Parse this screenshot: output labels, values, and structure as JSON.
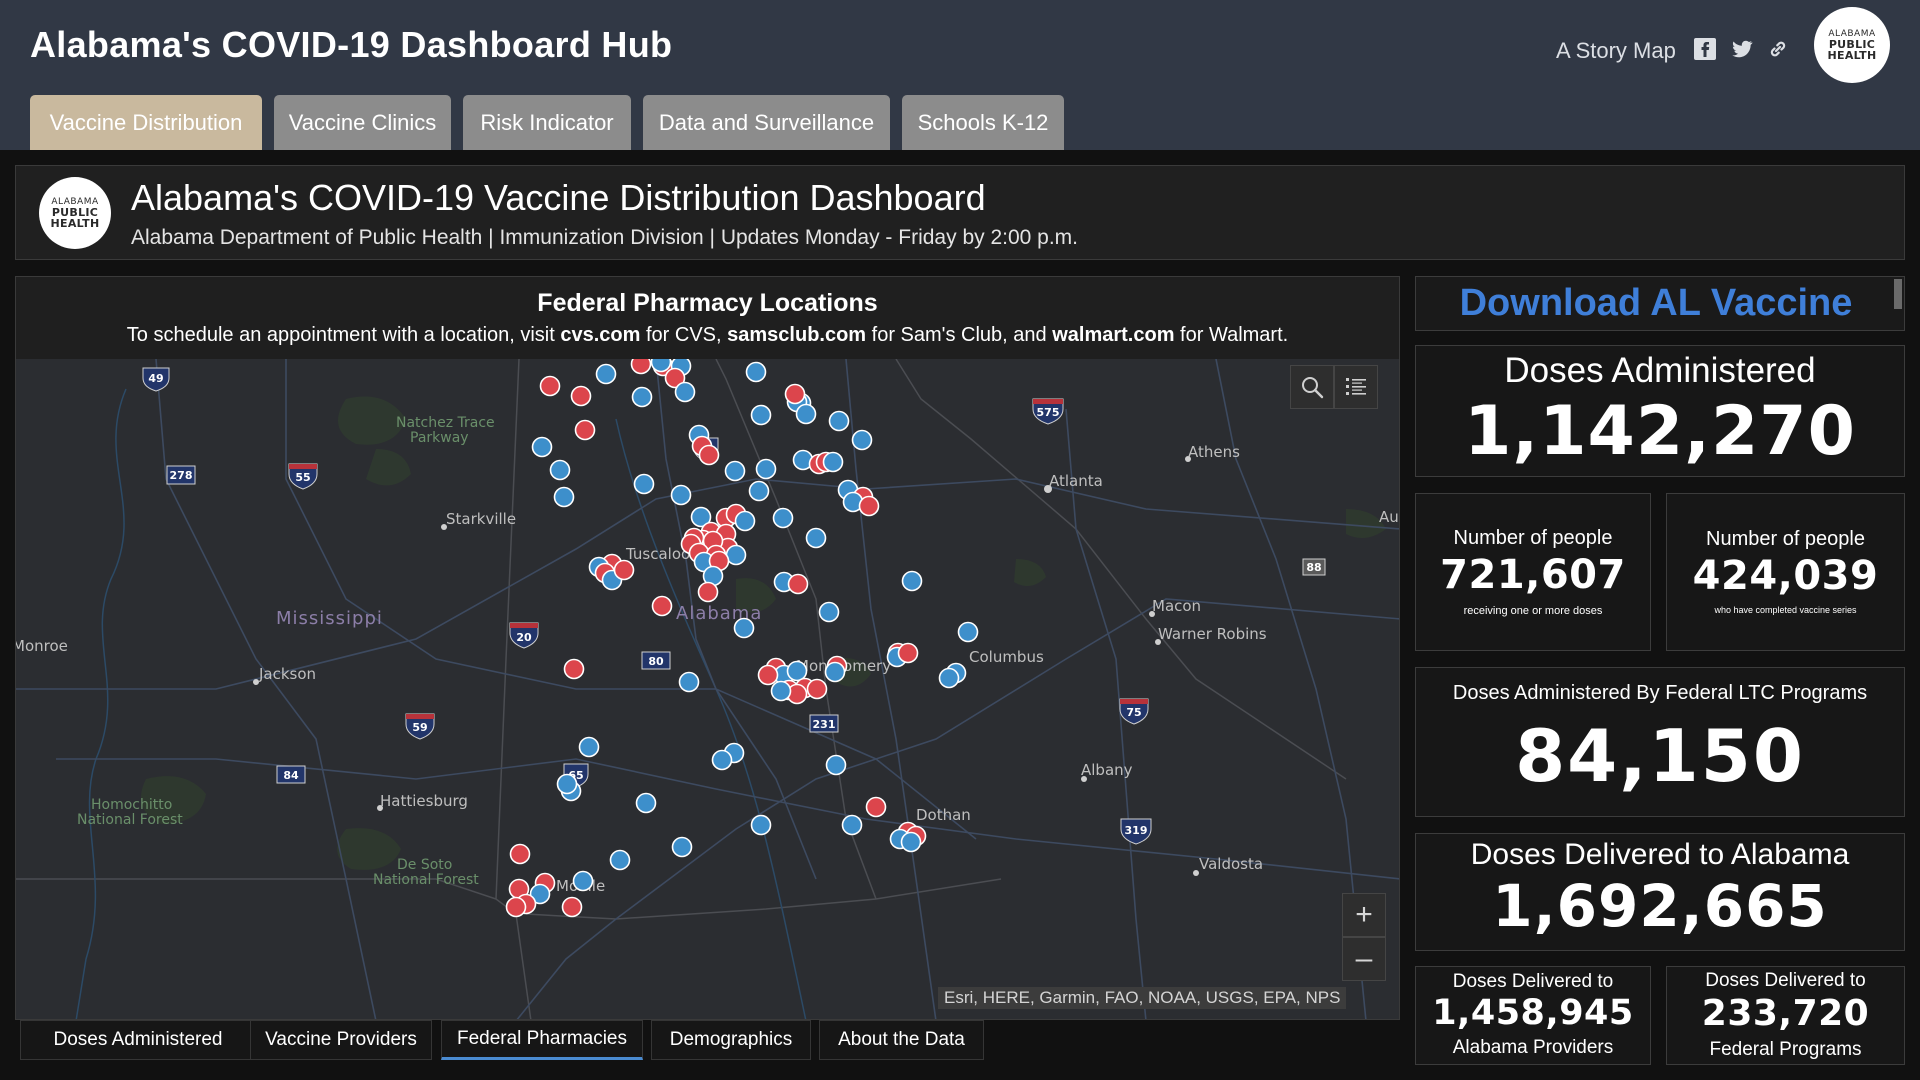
{
  "header": {
    "title": "Alabama's COVID-19 Dashboard Hub",
    "story_map": "A Story Map",
    "logo": {
      "line1": "ALABAMA",
      "line2": "PUBLIC",
      "line3": "HEALTH"
    }
  },
  "tabs": [
    "Vaccine Distribution",
    "Vaccine Clinics",
    "Risk Indicator",
    "Data and Surveillance",
    "Schools K-12"
  ],
  "dashboard": {
    "title": "Alabama's COVID-19 Vaccine Distribution Dashboard",
    "subtitle": "Alabama Department of Public Health | Immunization Division | Updates Monday - Friday by 2:00 p.m."
  },
  "map": {
    "title": "Federal Pharmacy Locations",
    "subtitle_pre": "To schedule an appointment with a location, visit ",
    "site_cvs": "cvs.com",
    "mid_cvs": " for CVS, ",
    "site_sams": "samsclub.com",
    "mid_sams": " for Sam's Club, and ",
    "site_walmart": "walmart.com",
    "post_walmart": " for Walmart.",
    "attribution": "Esri, HERE, Garmin, FAO, NOAA, USGS, EPA, NPS",
    "zoom_in": "+",
    "zoom_out": "–",
    "colors": {
      "blue": "#3d8fcb",
      "red": "#dc454c",
      "background": "#2b2d31"
    },
    "labels": [
      "Natchez Trace",
      "Parkway",
      "Athens",
      "Atlanta",
      "Starkville",
      "Tuscaloosa",
      "Mississippi",
      "Alabama",
      "Macon",
      "Warner Robins",
      "Columbus",
      "Montgomery",
      "Jackson",
      "Monroe",
      "Homochitto",
      "National Forest",
      "Hattiesburg",
      "Albany",
      "Dothan",
      "De Soto",
      "National Forest",
      "Valdosta",
      "Mobile",
      "Au"
    ],
    "highways": [
      "49",
      "278",
      "55",
      "575",
      "65",
      "20",
      "80",
      "88",
      "59",
      "231",
      "75",
      "84",
      "65",
      "319"
    ],
    "icons": {
      "search": "search-icon",
      "legend": "legend-list-icon"
    }
  },
  "bottom_tabs": [
    "Doses Administered",
    "Vaccine Providers",
    "Federal Pharmacies",
    "Demographics",
    "About the Data"
  ],
  "stats": {
    "download_label": "Download AL Vaccine",
    "doses_administered": {
      "label": "Doses Administered",
      "value": "1,142,270"
    },
    "people_one_dose": {
      "label": "Number of people",
      "value": "721,607",
      "note": "receiving one or more doses"
    },
    "people_complete": {
      "label": "Number of people",
      "value": "424,039",
      "note": "who have completed vaccine series"
    },
    "federal_ltc": {
      "label": "Doses Administered By Federal LTC Programs",
      "value": "84,150"
    },
    "delivered_alabama": {
      "label": "Doses Delivered to Alabama",
      "value": "1,692,665"
    },
    "delivered_providers": {
      "label_top": "Doses Delivered to",
      "value": "1,458,945",
      "label_bottom": "Alabama Providers"
    },
    "delivered_federal": {
      "label_top": "Doses Delivered to",
      "value": "233,720",
      "label_bottom": "Federal Programs"
    }
  }
}
